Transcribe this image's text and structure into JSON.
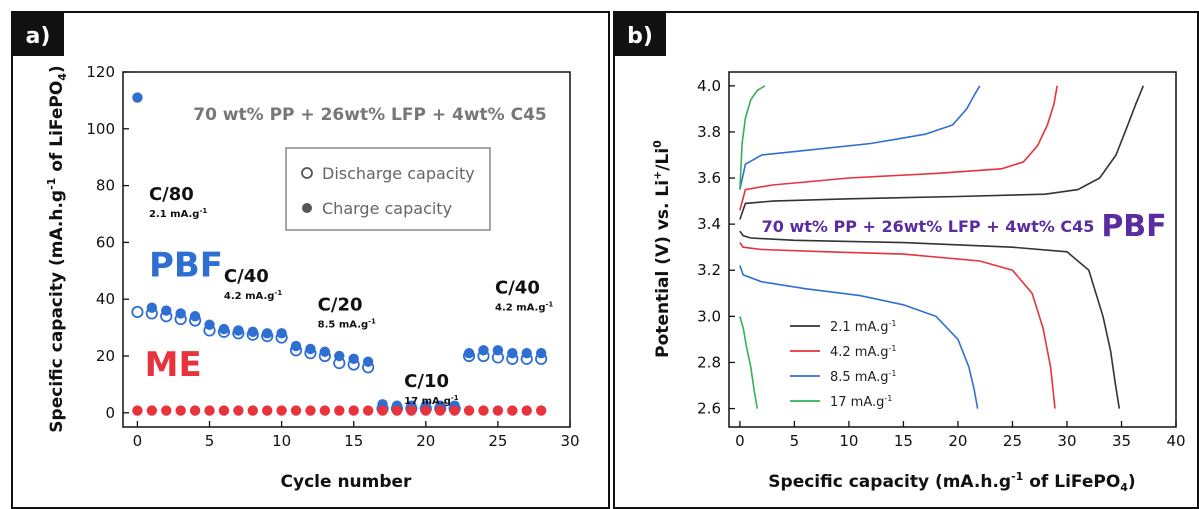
{
  "panels": [
    {
      "label": "a)",
      "chart_data": {
        "type": "scatter",
        "title": "",
        "xlabel": "Cycle number",
        "ylabel_parts": [
          "Specific capacity (mA.h.g",
          "-1",
          " of LiFePO",
          "4",
          ")"
        ],
        "xlim": [
          -1,
          30
        ],
        "ylim": [
          -5,
          120
        ],
        "xticks": [
          0,
          5,
          10,
          15,
          20,
          25,
          30
        ],
        "yticks": [
          0,
          20,
          40,
          60,
          80,
          100,
          120
        ],
        "grid": false,
        "legend_position": "upper-center",
        "annotation": "70 wt% PP + 26wt% LFP + 4wt% C45",
        "series": [
          {
            "name": "Discharge capacity",
            "marker": "open-circle",
            "group": "PBF",
            "color": "#2f6fd1",
            "x": [
              0,
              1,
              2,
              3,
              4,
              5,
              6,
              7,
              8,
              9,
              10,
              11,
              12,
              13,
              14,
              15,
              16,
              17,
              18,
              19,
              20,
              21,
              22,
              23,
              24,
              25,
              26,
              27,
              28
            ],
            "y": [
              35.5,
              35,
              34,
              33,
              32.5,
              29,
              28.5,
              28,
              27.5,
              27,
              26.5,
              22,
              21,
              20,
              17.5,
              17,
              16,
              1.5,
              1.5,
              1.5,
              1.5,
              1.5,
              1.5,
              20,
              20,
              19.5,
              19,
              19,
              19
            ]
          },
          {
            "name": "Charge capacity",
            "marker": "filled-circle",
            "group": "PBF",
            "color": "#2f6fd1",
            "x": [
              0,
              1,
              2,
              3,
              4,
              5,
              6,
              7,
              8,
              9,
              10,
              11,
              12,
              13,
              14,
              15,
              16,
              17,
              18,
              19,
              20,
              21,
              22,
              23,
              24,
              25,
              26,
              27,
              28
            ],
            "y": [
              111,
              37,
              36,
              35,
              34,
              31,
              29.5,
              29,
              28.5,
              28,
              28,
              23.5,
              22.5,
              21.5,
              20,
              19,
              18,
              3,
              2.5,
              2.5,
              2.5,
              2.5,
              2.5,
              21,
              22,
              22,
              21,
              21,
              21
            ]
          },
          {
            "name": "ME",
            "marker": "filled-circle",
            "group": "ME",
            "color": "#e8323c",
            "x": [
              0,
              1,
              2,
              3,
              4,
              5,
              6,
              7,
              8,
              9,
              10,
              11,
              12,
              13,
              14,
              15,
              16,
              17,
              18,
              19,
              20,
              21,
              22,
              23,
              24,
              25,
              26,
              27,
              28
            ],
            "y": [
              0.8,
              0.8,
              0.8,
              0.8,
              0.8,
              0.8,
              0.8,
              0.8,
              0.8,
              0.8,
              0.8,
              0.8,
              0.8,
              0.8,
              0.8,
              0.8,
              0.8,
              0.8,
              0.8,
              0.8,
              0.8,
              0.8,
              0.8,
              0.8,
              0.8,
              0.8,
              0.8,
              0.8,
              0.8
            ]
          }
        ],
        "legend_labels": [
          "Discharge capacity",
          "Charge capacity"
        ],
        "group_labels": [
          {
            "text": "PBF",
            "color": "#2f6fd1",
            "x": 0.8,
            "y": 48
          },
          {
            "text": "ME",
            "color": "#e8323c",
            "x": 0.5,
            "y": 13
          }
        ],
        "rate_labels": [
          {
            "rate": "C/80",
            "current": "2.1 mA.g",
            "sup": "-1",
            "x": 0.8,
            "y": 75
          },
          {
            "rate": "C/40",
            "current": "4.2 mA.g",
            "sup": "-1",
            "x": 6.0,
            "y": 46
          },
          {
            "rate": "C/20",
            "current": "8.5 mA.g",
            "sup": "-1",
            "x": 12.5,
            "y": 36
          },
          {
            "rate": "C/10",
            "current": "17 mA.g",
            "sup": "-1",
            "x": 18.5,
            "y": 9
          },
          {
            "rate": "C/40",
            "current": "4.2 mA.g",
            "sup": "-1",
            "x": 24.8,
            "y": 42
          }
        ]
      }
    },
    {
      "label": "b)",
      "chart_data": {
        "type": "line",
        "title": "",
        "xlabel_parts": [
          "Specific capacity (mA.h.g",
          "-1",
          " of LiFePO",
          "4",
          ")"
        ],
        "ylabel_parts": [
          "Potential (V) vs. Li",
          "+",
          "/Li",
          "0"
        ],
        "xlim": [
          -1,
          40
        ],
        "ylim": [
          2.52,
          4.06
        ],
        "xticks": [
          0,
          5,
          10,
          15,
          20,
          25,
          30,
          35,
          40
        ],
        "yticks": [
          2.6,
          2.8,
          3.0,
          3.2,
          3.4,
          3.6,
          3.8,
          4.0
        ],
        "grid": false,
        "legend_position": "lower-left",
        "annotation": "70 wt% PP + 26wt% LFP + 4wt% C45",
        "tag": "PBF",
        "series": [
          {
            "name": "2.1 mA.g",
            "sup": "-1",
            "color": "#333333",
            "charge": {
              "x": [
                0,
                0.5,
                3,
                10,
                20,
                28,
                31,
                33,
                34.5,
                35.5,
                36.3,
                37
              ],
              "y": [
                3.42,
                3.49,
                3.5,
                3.51,
                3.52,
                3.53,
                3.55,
                3.6,
                3.7,
                3.82,
                3.92,
                4.0
              ]
            },
            "discharge": {
              "x": [
                0,
                0.3,
                1,
                5,
                15,
                25,
                30,
                32,
                33.3,
                34,
                34.4,
                34.8
              ],
              "y": [
                3.37,
                3.35,
                3.34,
                3.33,
                3.32,
                3.3,
                3.28,
                3.2,
                3.0,
                2.85,
                2.72,
                2.6
              ]
            }
          },
          {
            "name": "4.2 mA.g",
            "sup": "-1",
            "color": "#e8323c",
            "charge": {
              "x": [
                0,
                0.5,
                3,
                10,
                18,
                24,
                26,
                27.3,
                28.2,
                28.8,
                29.1
              ],
              "y": [
                3.46,
                3.55,
                3.57,
                3.6,
                3.62,
                3.64,
                3.67,
                3.74,
                3.83,
                3.92,
                4.0
              ]
            },
            "discharge": {
              "x": [
                0,
                0.3,
                2,
                8,
                15,
                22,
                25,
                26.8,
                27.8,
                28.5,
                28.9
              ],
              "y": [
                3.32,
                3.3,
                3.29,
                3.28,
                3.27,
                3.24,
                3.2,
                3.1,
                2.95,
                2.78,
                2.6
              ]
            }
          },
          {
            "name": "8.5 mA.g",
            "sup": "-1",
            "color": "#2f6fd1",
            "charge": {
              "x": [
                0,
                0.5,
                2,
                6,
                12,
                17,
                19.5,
                20.8,
                21.5,
                22
              ],
              "y": [
                3.55,
                3.66,
                3.7,
                3.72,
                3.75,
                3.79,
                3.83,
                3.9,
                3.96,
                4.0
              ]
            },
            "discharge": {
              "x": [
                0,
                0.3,
                2,
                6,
                11,
                15,
                18,
                20,
                21,
                21.5,
                21.8
              ],
              "y": [
                3.22,
                3.18,
                3.15,
                3.12,
                3.09,
                3.05,
                3.0,
                2.9,
                2.78,
                2.68,
                2.6
              ]
            }
          },
          {
            "name": "17 mA.g",
            "sup": "-1",
            "color": "#34b05a",
            "charge": {
              "x": [
                0,
                0.2,
                0.5,
                1,
                1.6,
                2.3
              ],
              "y": [
                3.55,
                3.75,
                3.86,
                3.94,
                3.98,
                4.0
              ]
            },
            "discharge": {
              "x": [
                0,
                0.3,
                0.6,
                1,
                1.3,
                1.6
              ],
              "y": [
                3.0,
                2.95,
                2.87,
                2.78,
                2.68,
                2.6
              ]
            }
          }
        ]
      }
    }
  ]
}
